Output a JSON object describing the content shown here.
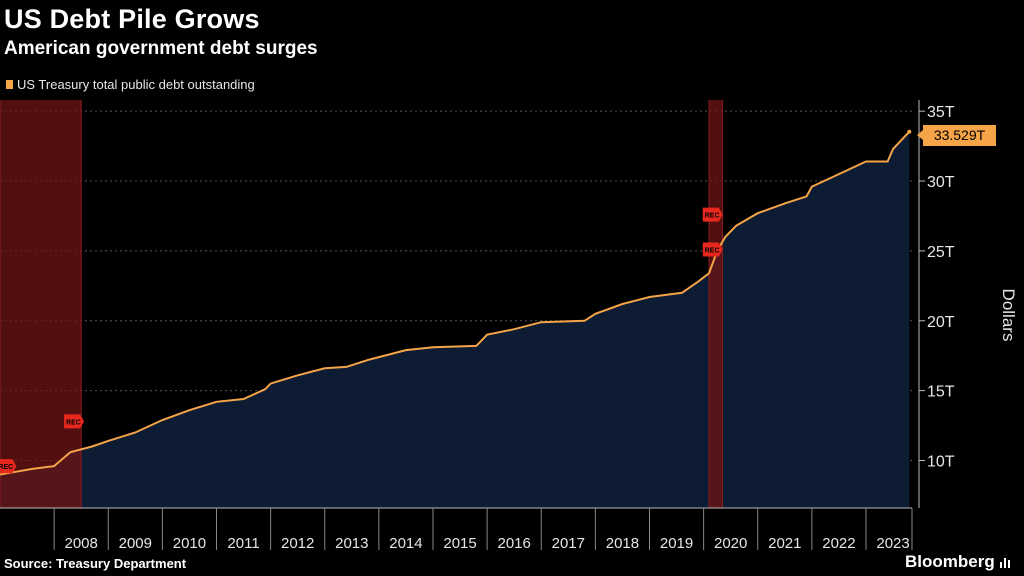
{
  "header": {
    "title": "US Debt Pile Grows",
    "subtitle": "American government debt surges"
  },
  "footer": {
    "source": "Source: Treasury Department",
    "brand": "Bloomberg"
  },
  "colors": {
    "line": "#f5a447",
    "area": "#0d1b33",
    "recession": "#6e1414",
    "rec_marker": "#e8281f"
  },
  "chart_data": {
    "type": "area",
    "title": "US Debt Pile Grows",
    "subtitle": "American government debt surges",
    "ylabel": "Dollars",
    "xlabel": "",
    "series": [
      {
        "name": "US Treasury total public debt outstanding",
        "x": [
          2007.0,
          2007.3,
          2007.6,
          2008.0,
          2008.3,
          2008.7,
          2009.0,
          2009.5,
          2010.0,
          2010.5,
          2011.0,
          2011.5,
          2011.9,
          2012.0,
          2012.5,
          2013.0,
          2013.4,
          2013.8,
          2014.0,
          2014.5,
          2015.0,
          2015.8,
          2016.0,
          2016.5,
          2017.0,
          2017.8,
          2018.0,
          2018.5,
          2019.0,
          2019.6,
          2019.9,
          2020.1,
          2020.25,
          2020.4,
          2020.6,
          2021.0,
          2021.5,
          2021.9,
          2022.0,
          2022.5,
          2023.0,
          2023.4,
          2023.5,
          2023.8
        ],
        "values": [
          9.0,
          9.2,
          9.4,
          9.6,
          10.6,
          11.0,
          11.4,
          12.0,
          12.9,
          13.6,
          14.2,
          14.4,
          15.1,
          15.5,
          16.1,
          16.6,
          16.7,
          17.2,
          17.4,
          17.9,
          18.1,
          18.2,
          19.0,
          19.4,
          19.9,
          20.0,
          20.5,
          21.2,
          21.7,
          22.0,
          22.8,
          23.4,
          25.0,
          26.0,
          26.8,
          27.7,
          28.4,
          28.9,
          29.6,
          30.5,
          31.4,
          31.4,
          32.3,
          33.529
        ]
      }
    ],
    "last_value_label": "33.529T",
    "x_ticks": [
      "2008",
      "2009",
      "2010",
      "2011",
      "2012",
      "2013",
      "2014",
      "2015",
      "2016",
      "2017",
      "2018",
      "2019",
      "2020",
      "2021",
      "2022",
      "2023"
    ],
    "y_ticks": [
      "10T",
      "15T",
      "20T",
      "25T",
      "30T",
      "35T"
    ],
    "y_tick_values": [
      10,
      15,
      20,
      25,
      30,
      35
    ],
    "xlim": [
      2007.0,
      2023.85
    ],
    "ylim": [
      6.6,
      35.8
    ],
    "legend": [
      "US Treasury total public debt outstanding"
    ],
    "legend_position": "top-left",
    "recessions": [
      {
        "start": 2007.0,
        "end": 2008.5,
        "label": "REC"
      },
      {
        "start": 2020.1,
        "end": 2020.35,
        "label": "REC"
      }
    ],
    "rec_markers": [
      {
        "x": 2007.1,
        "value": 9.6,
        "label": "REC"
      },
      {
        "x": 2008.35,
        "value": 12.8,
        "label": "REC"
      },
      {
        "x": 2020.15,
        "value": 27.6,
        "label": "REC"
      },
      {
        "x": 2020.15,
        "value": 25.1,
        "label": "REC"
      }
    ]
  }
}
